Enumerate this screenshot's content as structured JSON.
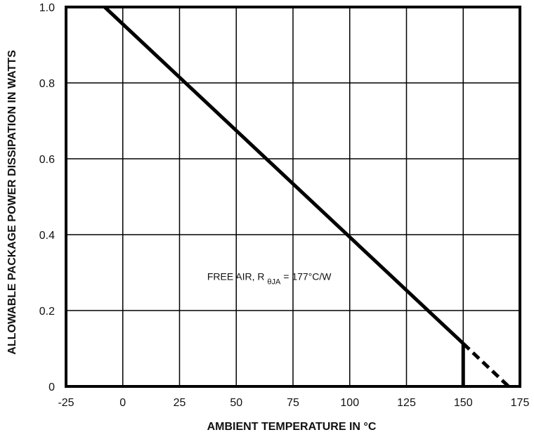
{
  "chart_data": {
    "type": "line",
    "xlabel": "AMBIENT TEMPERATURE IN °C",
    "ylabel": "ALLOWABLE PACKAGE POWER DISSIPATION IN WATTS",
    "xlim": [
      -25,
      175
    ],
    "ylim": [
      0,
      1.0
    ],
    "x_ticks": [
      -25,
      0,
      25,
      50,
      75,
      100,
      125,
      150,
      175
    ],
    "x_tick_labels": [
      "-25",
      "0",
      "25",
      "50",
      "75",
      "100",
      "125",
      "150",
      "175"
    ],
    "y_ticks": [
      0,
      0.2,
      0.4,
      0.6,
      0.8,
      1.0
    ],
    "y_tick_labels": [
      "0",
      "0.2",
      "0.4",
      "0.6",
      "0.8",
      "1.0"
    ],
    "grid": true,
    "series": [
      {
        "style": "solid",
        "points": [
          [
            -8,
            1.0
          ],
          [
            150,
            0.113
          ]
        ]
      },
      {
        "style": "dashed",
        "points": [
          [
            150,
            0.113
          ],
          [
            170,
            0.0
          ]
        ]
      }
    ],
    "markers": [
      {
        "style": "vertical-line",
        "x": 150,
        "y_from": 0,
        "y_to": 0.113
      }
    ],
    "annotation": {
      "prefix": "FREE AIR, R ",
      "subscript": "θJA",
      "suffix": " = 177°C/W",
      "x": 96,
      "y": 0.29
    }
  }
}
